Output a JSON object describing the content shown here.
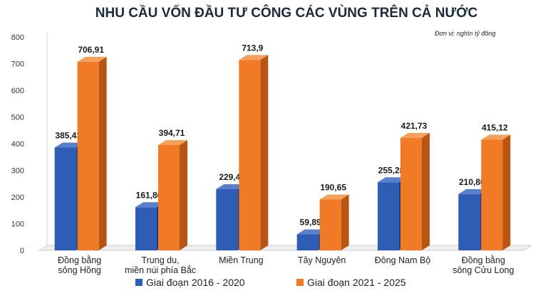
{
  "chart_data": {
    "type": "bar",
    "title": "NHU CẦU VỐN ĐẦU TƯ CÔNG CÁC VÙNG TRÊN CẢ NƯỚC",
    "unit_note": "Đơn vị: nghìn tỷ đồng",
    "categories": [
      [
        "Đồng bằng",
        "sông Hồng"
      ],
      [
        "Trung  du,",
        "miền núi phía Bắc"
      ],
      [
        "Miền Trung"
      ],
      [
        "Tây Nguyên"
      ],
      [
        "Đông Nam Bộ"
      ],
      [
        "Đồng bằng",
        "sông Cửu Long"
      ]
    ],
    "series": [
      {
        "name": "Giai đoạn 2016 - 2020",
        "values": [
          385.43,
          161.86,
          229.4,
          59.89,
          255.28,
          210.86
        ],
        "labels": [
          "385,43",
          "161,86",
          "229,4",
          "59,89",
          "255,28",
          "210,86"
        ],
        "color": "#2f5db5",
        "side_color": "#1f3f80",
        "top_color": "#5a80cc"
      },
      {
        "name": "Giai đoạn 2021 - 2025",
        "values": [
          706.91,
          394.71,
          713.9,
          190.65,
          421.73,
          415.12
        ],
        "labels": [
          "706,91",
          "394,71",
          "713,9",
          "190,65",
          "421,73",
          "415,12"
        ],
        "color": "#f07a25",
        "side_color": "#b85512",
        "top_color": "#f5a05c"
      }
    ],
    "yticks": [
      "0",
      "100",
      "200",
      "300",
      "400",
      "500",
      "600",
      "700",
      "800"
    ],
    "ylim": [
      0,
      800
    ],
    "grid": false,
    "legend": "bottom"
  }
}
